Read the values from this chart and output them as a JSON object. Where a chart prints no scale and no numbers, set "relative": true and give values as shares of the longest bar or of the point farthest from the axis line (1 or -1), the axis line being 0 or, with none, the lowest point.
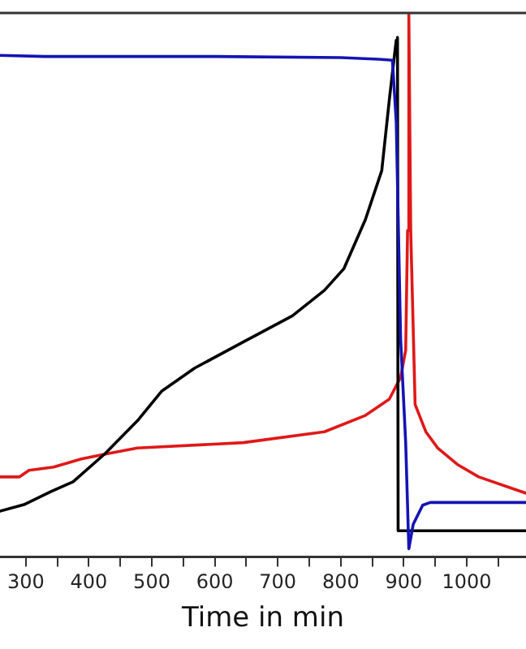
{
  "chart_data": {
    "type": "line",
    "relative": true,
    "xlabel": "Time in min",
    "xlim": [
      259,
      1094
    ],
    "xticks": [
      300,
      {
        "value": 350,
        "label": null
      },
      400,
      {
        "value": 450,
        "label": null
      },
      500,
      {
        "value": 550,
        "label": null
      },
      600,
      {
        "value": 650,
        "label": null
      },
      700,
      {
        "value": 750,
        "label": null
      },
      800,
      {
        "value": 850,
        "label": null
      },
      900,
      {
        "value": 950,
        "label": null
      },
      1000,
      {
        "value": 1050,
        "label": null
      }
    ],
    "grid": false,
    "legend": false,
    "marker": "none",
    "line_style": "solid",
    "series": [
      {
        "color": "#1414b4",
        "x": [
          259,
          330,
          600,
          800,
          860,
          882,
          888,
          895,
          903,
          908,
          915,
          930,
          942,
          1000,
          1094
        ],
        "values": [
          0.922,
          0.92,
          0.92,
          0.918,
          0.915,
          0.913,
          0.8,
          0.4,
          0.21,
          0.015,
          0.06,
          0.095,
          0.1,
          0.1,
          0.1
        ]
      },
      {
        "color": "#000000",
        "x": [
          259,
          297,
          340,
          375,
          426,
          477,
          516,
          568,
          645,
          723,
          774,
          805,
          839,
          865,
          877,
          888,
          890,
          891,
          1094
        ],
        "values": [
          0.084,
          0.096,
          0.12,
          0.138,
          0.19,
          0.25,
          0.305,
          0.347,
          0.395,
          0.443,
          0.49,
          0.53,
          0.62,
          0.71,
          0.84,
          0.95,
          0.955,
          0.048,
          0.048
        ]
      },
      {
        "color": "#e01818",
        "x": [
          259,
          290,
          305,
          344,
          388,
          426,
          477,
          645,
          774,
          839,
          877,
          895,
          903,
          906,
          908,
          911,
          918,
          935,
          954,
          985,
          1019,
          1094
        ],
        "values": [
          0.147,
          0.147,
          0.159,
          0.165,
          0.18,
          0.189,
          0.2,
          0.21,
          0.23,
          0.26,
          0.29,
          0.33,
          0.38,
          0.6,
          1.0,
          0.6,
          0.28,
          0.23,
          0.2,
          0.17,
          0.147,
          0.117
        ]
      }
    ]
  }
}
